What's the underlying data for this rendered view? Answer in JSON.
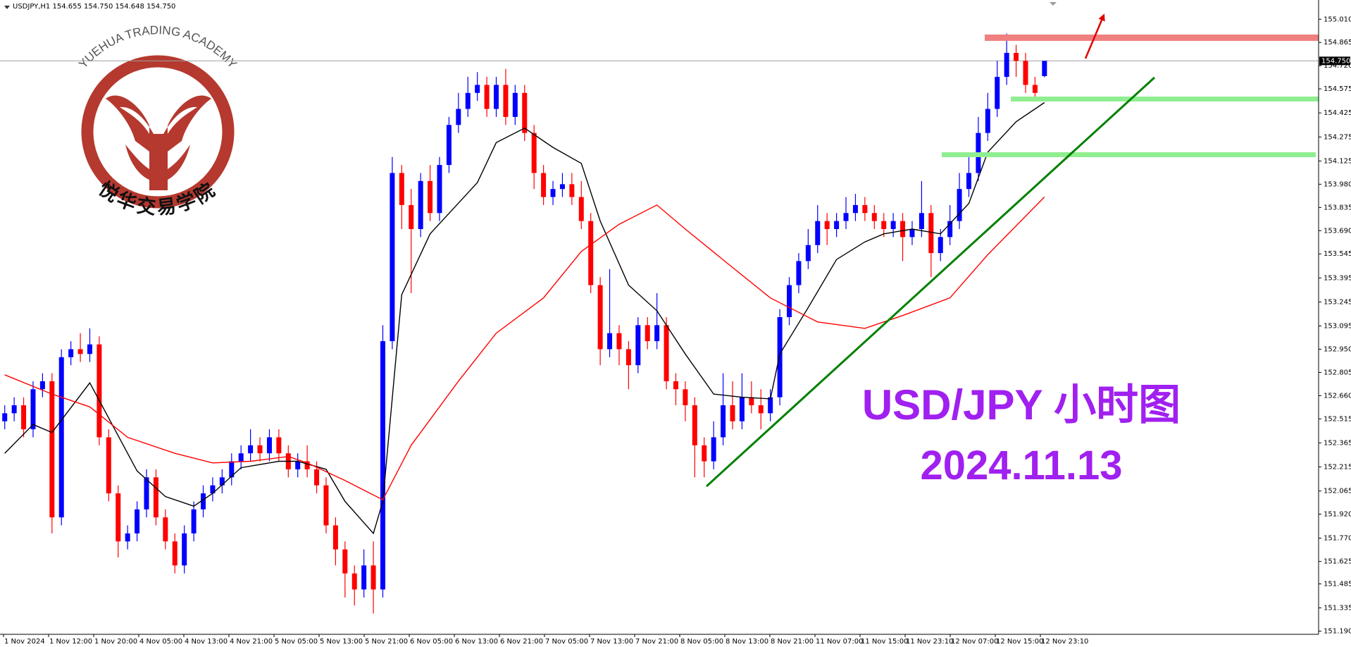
{
  "chart_data": {
    "type": "candlestick",
    "header": "USDJPY,H1  154.655 154.750 154.648 154.750",
    "bull_color": "#0000ff",
    "bear_color": "#ff0000",
    "xlim": [
      -0.5,
      139
    ],
    "ylim": [
      151.17,
      155.13
    ],
    "yticks": [
      {
        "value": 155.01,
        "label": "155.010"
      },
      154.865,
      {
        "value": 154.72,
        "label": "154.720"
      },
      154.575,
      154.425,
      154.275,
      154.125,
      {
        "value": 153.98,
        "label": "153.980"
      },
      153.835,
      {
        "value": 153.69,
        "label": "153.690"
      },
      153.545,
      153.395,
      153.245,
      153.095,
      {
        "value": 152.95,
        "label": "152.950"
      },
      152.805,
      {
        "value": 152.66,
        "label": "152.660"
      },
      152.515,
      152.365,
      152.215,
      152.065,
      {
        "value": 151.92,
        "label": "151.920"
      },
      {
        "value": 151.77,
        "label": "151.770"
      },
      151.625,
      151.485,
      151.335,
      {
        "value": 151.19,
        "label": "151.190"
      }
    ],
    "x_labels": [
      "1 Nov 2024",
      "1 Nov 12:00",
      "1 Nov 20:00",
      "4 Nov 05:00",
      "4 Nov 13:00",
      "4 Nov 21:00",
      "5 Nov 05:00",
      "5 Nov 13:00",
      "5 Nov 21:00",
      "6 Nov 05:00",
      "6 Nov 13:00",
      "6 Nov 21:00",
      "7 Nov 05:00",
      "7 Nov 13:00",
      "7 Nov 21:00",
      "8 Nov 05:00",
      "8 Nov 13:00",
      "8 Nov 21:00",
      "11 Nov 07:00",
      "11 Nov 15:00",
      "11 Nov 23:10",
      "12 Nov 07:00",
      "12 Nov 15:00",
      "12 Nov 23:10"
    ],
    "open": [
      152.5,
      152.55,
      152.6,
      152.45,
      152.7,
      152.75,
      151.9,
      152.9,
      152.95,
      152.92,
      152.98,
      152.4,
      152.05,
      151.75,
      151.8,
      151.95,
      152.15,
      151.9,
      151.75,
      151.6,
      151.8,
      151.95,
      152.05,
      152.1,
      152.15,
      152.25,
      152.3,
      152.35,
      152.3,
      152.4,
      152.3,
      152.2,
      152.25,
      152.2,
      152.1,
      151.85,
      151.7,
      151.55,
      151.45,
      151.6,
      151.45,
      153.0,
      154.05,
      153.85,
      153.7,
      154.0,
      153.8,
      154.1,
      154.35,
      154.45,
      154.55,
      154.6,
      154.45,
      154.6,
      154.4,
      154.55,
      154.3,
      154.05,
      153.9,
      153.95,
      153.98,
      153.9,
      153.75,
      153.35,
      152.95,
      153.05,
      152.95,
      152.85,
      153.1,
      153.0,
      153.1,
      152.75,
      152.7,
      152.6,
      152.35,
      152.25,
      152.4,
      152.6,
      152.5,
      152.65,
      152.6,
      152.55,
      152.65,
      153.15,
      153.35,
      153.5,
      153.6,
      153.75,
      153.7,
      153.75,
      153.8,
      153.85,
      153.8,
      153.75,
      153.7,
      153.75,
      153.65,
      153.7,
      153.8,
      153.55,
      153.65,
      153.75,
      153.95,
      154.05,
      154.3,
      154.45,
      154.65,
      154.8,
      154.75,
      154.6,
      154.655
    ],
    "high": [
      152.6,
      152.65,
      152.65,
      152.75,
      152.8,
      152.8,
      152.95,
      153.0,
      153.05,
      153.08,
      153.03,
      152.45,
      152.1,
      151.85,
      152.0,
      152.2,
      152.2,
      151.95,
      151.8,
      151.85,
      152.0,
      152.1,
      152.15,
      152.2,
      152.3,
      152.35,
      152.45,
      152.4,
      152.45,
      152.45,
      152.35,
      152.3,
      152.35,
      152.25,
      152.15,
      151.9,
      151.75,
      151.6,
      151.7,
      151.75,
      153.1,
      154.15,
      154.1,
      153.95,
      154.05,
      154.1,
      154.15,
      154.4,
      154.55,
      154.65,
      154.68,
      154.65,
      154.65,
      154.7,
      154.6,
      154.6,
      154.35,
      154.1,
      154.0,
      154.05,
      154.05,
      154.0,
      153.8,
      153.4,
      153.45,
      153.1,
      153.0,
      153.15,
      153.15,
      153.3,
      153.15,
      152.8,
      152.75,
      152.65,
      152.4,
      152.5,
      152.8,
      152.75,
      152.8,
      152.75,
      152.7,
      152.7,
      153.2,
      153.4,
      153.55,
      153.7,
      153.85,
      153.8,
      153.8,
      153.9,
      153.92,
      153.9,
      153.85,
      153.8,
      153.8,
      153.8,
      153.75,
      154.0,
      153.85,
      153.7,
      153.85,
      154.05,
      154.15,
      154.4,
      154.55,
      154.75,
      154.92,
      154.85,
      154.8,
      154.65,
      154.75
    ],
    "low": [
      152.45,
      152.5,
      152.4,
      152.4,
      152.65,
      151.8,
      151.85,
      152.85,
      152.87,
      152.87,
      152.35,
      152.0,
      151.65,
      151.7,
      151.75,
      151.9,
      151.85,
      151.7,
      151.55,
      151.55,
      151.75,
      151.9,
      152.0,
      152.05,
      152.1,
      152.2,
      152.25,
      152.25,
      152.25,
      152.25,
      152.15,
      152.15,
      152.15,
      152.05,
      151.8,
      151.6,
      151.4,
      151.35,
      151.4,
      151.3,
      151.4,
      152.95,
      153.7,
      153.3,
      153.65,
      153.75,
      153.75,
      154.05,
      154.3,
      154.4,
      154.5,
      154.4,
      154.4,
      154.35,
      154.35,
      154.25,
      153.95,
      153.85,
      153.85,
      153.9,
      153.85,
      153.7,
      153.3,
      152.85,
      152.9,
      152.85,
      152.7,
      152.8,
      152.95,
      152.95,
      152.7,
      152.6,
      152.5,
      152.15,
      152.15,
      152.2,
      152.35,
      152.45,
      152.45,
      152.55,
      152.45,
      152.5,
      152.6,
      153.1,
      153.3,
      153.45,
      153.55,
      153.6,
      153.65,
      153.7,
      153.75,
      153.75,
      153.7,
      153.65,
      153.65,
      153.5,
      153.6,
      153.65,
      153.4,
      153.5,
      153.6,
      153.7,
      153.9,
      154.0,
      154.25,
      154.4,
      154.6,
      154.65,
      154.55,
      154.5,
      154.648
    ],
    "close": [
      152.55,
      152.6,
      152.45,
      152.7,
      152.75,
      151.9,
      152.9,
      152.95,
      152.92,
      152.98,
      152.4,
      152.05,
      151.75,
      151.8,
      151.95,
      152.15,
      151.9,
      151.75,
      151.6,
      151.8,
      151.95,
      152.05,
      152.1,
      152.15,
      152.25,
      152.3,
      152.35,
      152.3,
      152.4,
      152.3,
      152.2,
      152.25,
      152.2,
      152.1,
      151.85,
      151.7,
      151.55,
      151.45,
      151.6,
      151.45,
      153.0,
      154.05,
      153.85,
      153.7,
      154.0,
      153.8,
      154.1,
      154.35,
      154.45,
      154.55,
      154.6,
      154.45,
      154.6,
      154.4,
      154.55,
      154.3,
      154.05,
      153.9,
      153.95,
      153.98,
      153.9,
      153.75,
      153.35,
      152.95,
      153.05,
      152.95,
      152.85,
      153.1,
      153.0,
      153.1,
      152.75,
      152.7,
      152.6,
      152.35,
      152.25,
      152.4,
      152.6,
      152.5,
      152.65,
      152.6,
      152.55,
      152.65,
      153.15,
      153.35,
      153.5,
      153.6,
      153.75,
      153.7,
      153.75,
      153.8,
      153.85,
      153.8,
      153.75,
      153.7,
      153.75,
      153.65,
      153.7,
      153.8,
      153.55,
      153.65,
      153.75,
      153.95,
      154.05,
      154.3,
      154.45,
      154.65,
      154.8,
      154.75,
      154.6,
      154.55,
      154.75
    ],
    "moving_averages": [
      {
        "color": "#000000",
        "x": [
          0,
          3,
          5,
          9,
          14,
          17,
          20,
          22,
          25,
          29,
          31,
          34,
          36,
          39,
          40,
          42,
          45,
          50,
          52,
          55,
          58,
          61,
          63,
          66,
          69,
          72,
          75,
          78,
          81,
          82,
          85,
          88,
          91,
          93,
          96,
          99,
          102,
          104,
          107,
          110
        ],
        "values": [
          152.3,
          152.48,
          152.43,
          152.74,
          152.19,
          152.03,
          151.97,
          152.05,
          152.21,
          152.25,
          152.25,
          152.2,
          152.0,
          151.8,
          152.0,
          153.29,
          153.67,
          153.99,
          154.24,
          154.33,
          154.21,
          154.11,
          153.75,
          153.35,
          153.19,
          152.92,
          152.67,
          152.65,
          152.64,
          152.92,
          153.21,
          153.51,
          153.62,
          153.67,
          153.7,
          153.67,
          153.86,
          154.18,
          154.37,
          154.49
        ]
      },
      {
        "color": "#ff0000",
        "x": [
          0,
          5,
          9,
          13,
          18,
          22,
          26,
          30,
          32,
          36,
          40,
          43,
          48,
          52,
          57,
          61,
          65,
          69,
          72,
          77,
          81,
          86,
          91,
          95,
          100,
          104,
          110
        ],
        "values": [
          152.79,
          152.67,
          152.59,
          152.4,
          152.3,
          152.24,
          152.25,
          152.28,
          152.24,
          152.13,
          152.01,
          152.35,
          152.75,
          153.05,
          153.27,
          153.56,
          153.73,
          153.85,
          153.7,
          153.46,
          153.27,
          153.12,
          153.08,
          153.16,
          153.27,
          153.54,
          153.9
        ]
      }
    ],
    "last_price": {
      "value": 154.75,
      "label": "154.750"
    },
    "annotations": {
      "title": "USD/JPY 小时图",
      "date": "2024.11.13"
    },
    "logo": {
      "text_en": "YUEHUA TRADING ACADEMY",
      "text_cn": "悦华交易学院"
    }
  }
}
